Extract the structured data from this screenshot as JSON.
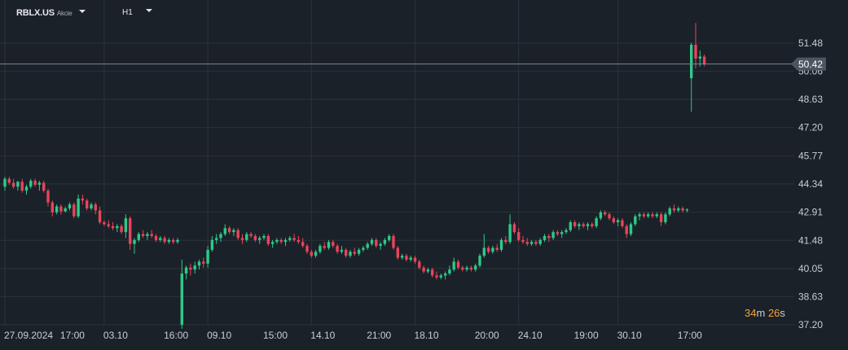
{
  "header": {
    "symbol": "RBLX.US",
    "instrument_type": "Akcie",
    "timeframe": "H1"
  },
  "countdown": {
    "minutes": "34",
    "m_label": "m",
    "seconds": "26",
    "s_label": "s"
  },
  "colors": {
    "background": "#1b2128",
    "grid": "#2a323b",
    "bull": "#2ec98a",
    "bear": "#e8455a",
    "axis_text": "#c7ced6",
    "price_tag": "#4b5660"
  },
  "chart_data": {
    "type": "candlestick",
    "title": "",
    "grid": true,
    "y_ticks": [
      "51.48",
      "50.06",
      "48.63",
      "47.20",
      "45.77",
      "44.34",
      "42.91",
      "41.48",
      "40.05",
      "38.63",
      "37.20"
    ],
    "ylim": [
      37.0,
      52.6
    ],
    "x_labels": [
      {
        "label": "27.09.2024",
        "index": 0
      },
      {
        "label": "17:00",
        "index": 13
      },
      {
        "label": "03.10",
        "index": 23
      },
      {
        "label": "16:00",
        "index": 37
      },
      {
        "label": "09.10",
        "index": 47
      },
      {
        "label": "15:00",
        "index": 60
      },
      {
        "label": "14.10",
        "index": 71
      },
      {
        "label": "21:00",
        "index": 84
      },
      {
        "label": "18.10",
        "index": 95
      },
      {
        "label": "20:00",
        "index": 109
      },
      {
        "label": "24.10",
        "index": 119
      },
      {
        "label": "19:00",
        "index": 132
      },
      {
        "label": "30.10",
        "index": 142
      },
      {
        "label": "17:00",
        "index": 156
      }
    ],
    "current_price": "50.42",
    "current_price_value": 50.42,
    "candles": [
      [
        44.2,
        44.7,
        44.0,
        44.6
      ],
      [
        44.6,
        44.7,
        44.3,
        44.4
      ],
      [
        44.4,
        44.6,
        44.1,
        44.2
      ],
      [
        44.2,
        44.5,
        44.0,
        44.45
      ],
      [
        44.45,
        44.6,
        43.9,
        44.0
      ],
      [
        44.0,
        44.3,
        43.8,
        44.2
      ],
      [
        44.2,
        44.6,
        44.1,
        44.5
      ],
      [
        44.5,
        44.6,
        44.2,
        44.3
      ],
      [
        44.3,
        44.5,
        44.0,
        44.4
      ],
      [
        44.4,
        44.5,
        43.9,
        44.0
      ],
      [
        44.0,
        44.1,
        43.2,
        43.4
      ],
      [
        43.4,
        43.5,
        42.7,
        42.9
      ],
      [
        42.9,
        43.3,
        42.8,
        43.2
      ],
      [
        43.2,
        43.3,
        42.8,
        42.95
      ],
      [
        42.95,
        43.2,
        42.9,
        43.1
      ],
      [
        43.1,
        43.4,
        43.0,
        43.3
      ],
      [
        43.3,
        43.4,
        42.6,
        42.7
      ],
      [
        42.7,
        43.8,
        42.6,
        43.6
      ],
      [
        43.6,
        43.8,
        43.3,
        43.5
      ],
      [
        43.5,
        43.6,
        43.0,
        43.1
      ],
      [
        43.1,
        43.4,
        43.0,
        43.3
      ],
      [
        43.3,
        43.4,
        42.8,
        43.0
      ],
      [
        43.0,
        43.2,
        42.3,
        42.4
      ],
      [
        42.4,
        42.5,
        42.2,
        42.3
      ],
      [
        42.3,
        42.5,
        42.1,
        42.2
      ],
      [
        42.2,
        42.4,
        42.0,
        42.1
      ],
      [
        42.1,
        42.3,
        41.9,
        42.2
      ],
      [
        42.2,
        42.3,
        41.8,
        41.9
      ],
      [
        41.9,
        42.8,
        41.6,
        42.6
      ],
      [
        42.6,
        42.7,
        41.0,
        41.3
      ],
      [
        41.3,
        41.6,
        40.8,
        41.5
      ],
      [
        41.5,
        41.9,
        41.4,
        41.8
      ],
      [
        41.8,
        42.0,
        41.6,
        41.7
      ],
      [
        41.7,
        41.9,
        41.5,
        41.8
      ],
      [
        41.8,
        42.0,
        41.6,
        41.7
      ],
      [
        41.7,
        41.8,
        41.4,
        41.5
      ],
      [
        41.5,
        41.7,
        41.4,
        41.6
      ],
      [
        41.6,
        41.7,
        41.3,
        41.4
      ],
      [
        41.4,
        41.6,
        41.3,
        41.5
      ],
      [
        41.5,
        41.6,
        41.3,
        41.4
      ],
      [
        41.4,
        41.6,
        41.3,
        41.5
      ],
      [
        37.2,
        40.5,
        37.0,
        39.8
      ],
      [
        39.8,
        40.2,
        39.5,
        40.1
      ],
      [
        40.1,
        40.3,
        39.7,
        40.0
      ],
      [
        40.0,
        40.4,
        39.8,
        40.2
      ],
      [
        40.2,
        40.5,
        40.0,
        40.4
      ],
      [
        40.4,
        40.6,
        40.1,
        40.3
      ],
      [
        40.3,
        41.2,
        40.1,
        41.0
      ],
      [
        41.0,
        41.7,
        40.9,
        41.5
      ],
      [
        41.5,
        41.8,
        41.3,
        41.6
      ],
      [
        41.6,
        41.9,
        41.4,
        41.8
      ],
      [
        41.8,
        42.3,
        41.7,
        42.1
      ],
      [
        42.1,
        42.2,
        41.8,
        41.9
      ],
      [
        41.9,
        42.1,
        41.7,
        42.0
      ],
      [
        42.0,
        42.1,
        41.5,
        41.6
      ],
      [
        41.6,
        41.8,
        41.3,
        41.5
      ],
      [
        41.5,
        41.9,
        41.4,
        41.8
      ],
      [
        41.8,
        41.9,
        41.6,
        41.7
      ],
      [
        41.7,
        41.8,
        41.4,
        41.5
      ],
      [
        41.5,
        41.7,
        41.3,
        41.6
      ],
      [
        41.6,
        41.8,
        41.5,
        41.7
      ],
      [
        41.7,
        41.8,
        41.2,
        41.3
      ],
      [
        41.3,
        41.5,
        41.1,
        41.4
      ],
      [
        41.4,
        41.6,
        41.3,
        41.5
      ],
      [
        41.5,
        41.6,
        41.3,
        41.4
      ],
      [
        41.4,
        41.6,
        41.2,
        41.5
      ],
      [
        41.5,
        41.7,
        41.4,
        41.6
      ],
      [
        41.6,
        41.8,
        41.4,
        41.5
      ],
      [
        41.5,
        41.7,
        41.3,
        41.4
      ],
      [
        41.4,
        41.6,
        41.1,
        41.2
      ],
      [
        41.2,
        41.3,
        40.8,
        40.9
      ],
      [
        40.9,
        41.0,
        40.6,
        40.7
      ],
      [
        40.7,
        41.0,
        40.6,
        40.9
      ],
      [
        40.9,
        41.3,
        40.8,
        41.2
      ],
      [
        41.2,
        41.4,
        41.0,
        41.1
      ],
      [
        41.1,
        41.5,
        41.0,
        41.4
      ],
      [
        41.4,
        41.5,
        41.1,
        41.2
      ],
      [
        41.2,
        41.3,
        40.8,
        40.9
      ],
      [
        40.9,
        41.2,
        40.8,
        41.0
      ],
      [
        41.0,
        41.1,
        40.6,
        40.7
      ],
      [
        40.7,
        41.0,
        40.6,
        40.9
      ],
      [
        40.9,
        41.1,
        40.7,
        40.8
      ],
      [
        40.8,
        41.1,
        40.7,
        41.0
      ],
      [
        41.0,
        41.2,
        40.9,
        41.1
      ],
      [
        41.1,
        41.4,
        41.0,
        41.3
      ],
      [
        41.3,
        41.6,
        41.2,
        41.5
      ],
      [
        41.5,
        41.6,
        41.1,
        41.2
      ],
      [
        41.2,
        41.4,
        41.0,
        41.3
      ],
      [
        41.3,
        41.6,
        41.2,
        41.5
      ],
      [
        41.5,
        41.8,
        41.4,
        41.7
      ],
      [
        41.7,
        41.8,
        41.0,
        41.1
      ],
      [
        41.1,
        41.2,
        40.5,
        40.6
      ],
      [
        40.6,
        40.8,
        40.5,
        40.7
      ],
      [
        40.7,
        40.8,
        40.4,
        40.5
      ],
      [
        40.5,
        40.7,
        40.4,
        40.6
      ],
      [
        40.6,
        40.7,
        40.3,
        40.4
      ],
      [
        40.4,
        40.5,
        40.0,
        40.1
      ],
      [
        40.1,
        40.2,
        39.8,
        39.9
      ],
      [
        39.9,
        40.1,
        39.8,
        40.0
      ],
      [
        40.0,
        40.1,
        39.6,
        39.7
      ],
      [
        39.7,
        39.9,
        39.5,
        39.6
      ],
      [
        39.6,
        39.8,
        39.5,
        39.7
      ],
      [
        39.7,
        39.9,
        39.5,
        39.8
      ],
      [
        39.8,
        40.2,
        39.7,
        40.0
      ],
      [
        40.0,
        40.6,
        39.9,
        40.4
      ],
      [
        40.4,
        40.5,
        40.0,
        40.1
      ],
      [
        40.1,
        40.2,
        39.9,
        40.0
      ],
      [
        40.0,
        40.2,
        39.9,
        40.1
      ],
      [
        40.1,
        40.2,
        39.9,
        40.0
      ],
      [
        40.0,
        40.3,
        39.9,
        40.2
      ],
      [
        40.2,
        40.8,
        40.1,
        40.7
      ],
      [
        40.7,
        41.8,
        40.6,
        41.1
      ],
      [
        41.1,
        41.2,
        40.8,
        40.9
      ],
      [
        40.9,
        41.2,
        40.8,
        41.1
      ],
      [
        41.1,
        41.3,
        40.9,
        41.0
      ],
      [
        41.0,
        41.6,
        40.9,
        41.5
      ],
      [
        41.5,
        41.7,
        41.3,
        41.4
      ],
      [
        41.4,
        42.8,
        41.3,
        42.3
      ],
      [
        42.3,
        42.4,
        41.8,
        41.9
      ],
      [
        41.9,
        42.1,
        41.4,
        41.5
      ],
      [
        41.5,
        41.7,
        41.3,
        41.4
      ],
      [
        41.4,
        41.6,
        41.2,
        41.3
      ],
      [
        41.3,
        41.5,
        41.2,
        41.4
      ],
      [
        41.4,
        41.5,
        41.2,
        41.3
      ],
      [
        41.3,
        41.6,
        41.2,
        41.5
      ],
      [
        41.5,
        41.8,
        41.4,
        41.7
      ],
      [
        41.7,
        41.8,
        41.4,
        41.6
      ],
      [
        41.6,
        42.0,
        41.5,
        41.9
      ],
      [
        41.9,
        42.0,
        41.7,
        41.8
      ],
      [
        41.8,
        42.0,
        41.6,
        41.9
      ],
      [
        41.9,
        42.1,
        41.8,
        42.0
      ],
      [
        42.0,
        42.5,
        41.9,
        42.4
      ],
      [
        42.4,
        42.5,
        42.1,
        42.2
      ],
      [
        42.2,
        42.4,
        42.0,
        42.3
      ],
      [
        42.3,
        42.4,
        42.1,
        42.2
      ],
      [
        42.2,
        42.4,
        42.0,
        42.3
      ],
      [
        42.3,
        42.4,
        42.1,
        42.2
      ],
      [
        42.2,
        42.7,
        42.1,
        42.6
      ],
      [
        42.6,
        43.0,
        42.5,
        42.9
      ],
      [
        42.9,
        43.0,
        42.7,
        42.8
      ],
      [
        42.8,
        42.9,
        42.5,
        42.6
      ],
      [
        42.6,
        42.7,
        42.3,
        42.4
      ],
      [
        42.4,
        42.6,
        42.2,
        42.5
      ],
      [
        42.5,
        42.6,
        42.1,
        42.2
      ],
      [
        42.2,
        42.3,
        41.6,
        41.8
      ],
      [
        41.8,
        42.4,
        41.7,
        42.3
      ],
      [
        42.3,
        42.8,
        42.2,
        42.7
      ],
      [
        42.7,
        42.9,
        42.5,
        42.8
      ],
      [
        42.8,
        42.9,
        42.6,
        42.7
      ],
      [
        42.7,
        42.9,
        42.6,
        42.8
      ],
      [
        42.8,
        42.9,
        42.6,
        42.7
      ],
      [
        42.7,
        42.9,
        42.6,
        42.8
      ],
      [
        42.8,
        42.9,
        42.2,
        42.4
      ],
      [
        42.4,
        42.9,
        42.3,
        42.8
      ],
      [
        42.8,
        43.2,
        42.7,
        43.1
      ],
      [
        43.1,
        43.3,
        42.9,
        43.0
      ],
      [
        43.0,
        43.2,
        42.9,
        43.1
      ],
      [
        43.1,
        43.2,
        42.9,
        43.0
      ],
      [
        43.0,
        43.1,
        42.9,
        43.05
      ],
      [
        49.7,
        51.5,
        48.0,
        51.4
      ],
      [
        51.4,
        52.5,
        50.2,
        50.7
      ],
      [
        50.7,
        51.1,
        50.3,
        50.8
      ],
      [
        50.8,
        50.9,
        50.3,
        50.42
      ]
    ]
  }
}
